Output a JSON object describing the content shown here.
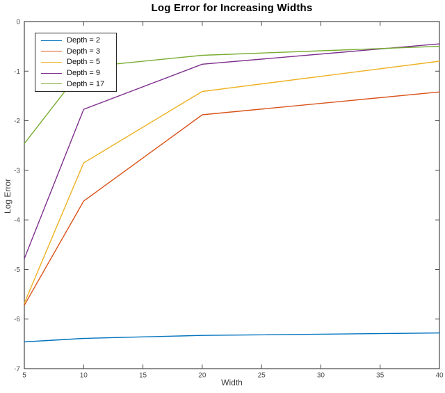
{
  "figure": {
    "title": "Log Error for Increasing Widths",
    "xlabel": "Width",
    "ylabel": "Log Error"
  },
  "colors": {
    "background": "#ffffff",
    "axis": "#454545",
    "tick_label": "#4d4d4d",
    "title": "#000000",
    "legend_border": "#2a2a2a"
  },
  "chart_data": {
    "type": "line",
    "title": "Log Error for Increasing Widths",
    "xlabel": "Width",
    "ylabel": "Log Error",
    "x": [
      5,
      10,
      20,
      40
    ],
    "series": [
      {
        "name": "Depth = 2",
        "color": "#0072BD",
        "values": [
          -6.46,
          -6.39,
          -6.33,
          -6.28
        ]
      },
      {
        "name": "Depth = 3",
        "color": "#D95319",
        "values": [
          -5.72,
          -3.62,
          -1.88,
          -1.42
        ]
      },
      {
        "name": "Depth = 5",
        "color": "#EDB120",
        "values": [
          -5.68,
          -2.85,
          -1.41,
          -0.8
        ]
      },
      {
        "name": "Depth = 9",
        "color": "#7E2F8E",
        "values": [
          -4.78,
          -1.77,
          -0.86,
          -0.45
        ]
      },
      {
        "name": "Depth = 17",
        "color": "#77AC30",
        "values": [
          -2.46,
          -0.92,
          -0.68,
          -0.5
        ]
      }
    ],
    "xlim": [
      5,
      40
    ],
    "ylim": [
      -7,
      0
    ],
    "xticks": [
      5,
      10,
      15,
      20,
      25,
      30,
      35,
      40
    ],
    "yticks": [
      0,
      -1,
      -2,
      -3,
      -4,
      -5,
      -6,
      -7
    ],
    "grid": false,
    "box": true,
    "tick_direction": "in",
    "legend_position": "top-left"
  }
}
